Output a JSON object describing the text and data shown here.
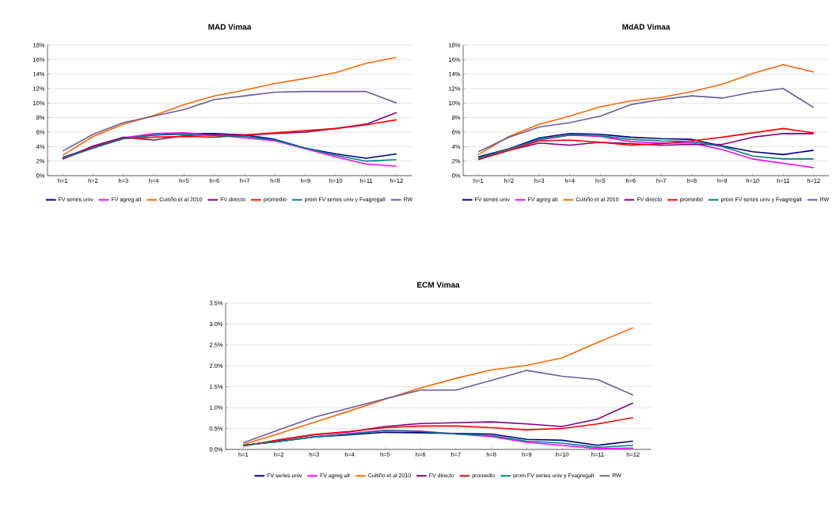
{
  "chart_data": [
    {
      "type": "line",
      "title": "MAD Vimaa",
      "categories": [
        "h=1",
        "h=2",
        "h=3",
        "h=4",
        "h=5",
        "h=6",
        "h=7",
        "h=8",
        "h=9",
        "h=10",
        "h=11",
        "h=12"
      ],
      "ylim": [
        0,
        18
      ],
      "yticks": [
        {
          "value": 0,
          "label": "0%"
        },
        {
          "value": 2,
          "label": "2%"
        },
        {
          "value": 4,
          "label": "4%"
        },
        {
          "value": 6,
          "label": "6%"
        },
        {
          "value": 8,
          "label": "8%"
        },
        {
          "value": 10,
          "label": "10%"
        },
        {
          "value": 12,
          "label": "12%"
        },
        {
          "value": 14,
          "label": "14%"
        },
        {
          "value": 16,
          "label": "16%"
        },
        {
          "value": 18,
          "label": "18%"
        }
      ],
      "grid": "y",
      "legend": "bottom",
      "marker": "none",
      "line_style": "solid",
      "series": [
        {
          "name": "FV series univ",
          "color": "#000080",
          "values": [
            2.5,
            3.9,
            5.2,
            5.6,
            5.8,
            5.8,
            5.6,
            5.0,
            3.8,
            3.0,
            2.4,
            3.0
          ]
        },
        {
          "name": "FV  agreg alt",
          "color": "#ff00ff",
          "values": [
            2.4,
            3.8,
            5.2,
            5.8,
            5.9,
            5.6,
            5.2,
            4.8,
            3.7,
            2.6,
            1.6,
            1.3
          ]
        },
        {
          "name": "Cuitiño et al 2010",
          "color": "#ff6600",
          "values": [
            2.8,
            5.4,
            7.1,
            8.3,
            9.8,
            11.0,
            11.8,
            12.7,
            13.4,
            14.2,
            15.5,
            16.3
          ]
        },
        {
          "name": "FV directo",
          "color": "#800080",
          "values": [
            2.3,
            4.1,
            5.3,
            4.9,
            5.5,
            5.7,
            5.6,
            5.8,
            6.0,
            6.5,
            7.1,
            8.7
          ]
        },
        {
          "name": "promedio",
          "color": "#ff0000",
          "values": [
            2.3,
            3.9,
            5.1,
            5.3,
            5.4,
            5.3,
            5.6,
            5.9,
            6.2,
            6.5,
            7.0,
            7.7
          ]
        },
        {
          "name": "prom FV series univ y Fvagregalt",
          "color": "#008080",
          "values": [
            2.4,
            3.8,
            5.1,
            5.6,
            5.7,
            5.5,
            5.4,
            4.9,
            3.8,
            2.8,
            2.0,
            2.2
          ]
        },
        {
          "name": "RW",
          "color": "#6f5a9a",
          "values": [
            3.4,
            5.7,
            7.3,
            8.2,
            9.1,
            10.5,
            11.0,
            11.5,
            11.6,
            11.6,
            11.6,
            10.0
          ]
        }
      ]
    },
    {
      "type": "line",
      "title": "MdAD Vimaa",
      "categories": [
        "h=1",
        "h=2",
        "h=3",
        "h=4",
        "h=5",
        "h=6",
        "h=7",
        "h=8",
        "h=9",
        "h=10",
        "h=11",
        "h=12"
      ],
      "ylim": [
        0,
        18
      ],
      "yticks": [
        {
          "value": 0,
          "label": "0%"
        },
        {
          "value": 2,
          "label": "2%"
        },
        {
          "value": 4,
          "label": "4%"
        },
        {
          "value": 6,
          "label": "6%"
        },
        {
          "value": 8,
          "label": "8%"
        },
        {
          "value": 10,
          "label": "10%"
        },
        {
          "value": 12,
          "label": "12%"
        },
        {
          "value": 14,
          "label": "14%"
        },
        {
          "value": 16,
          "label": "16%"
        },
        {
          "value": 18,
          "label": "18%"
        }
      ],
      "grid": "y",
      "legend": "bottom",
      "marker": "none",
      "line_style": "solid",
      "series": [
        {
          "name": "FV series univ",
          "color": "#000080",
          "values": [
            2.6,
            3.7,
            5.2,
            5.8,
            5.7,
            5.3,
            5.1,
            5.0,
            4.1,
            3.3,
            2.9,
            3.5
          ]
        },
        {
          "name": "FV  agreg alt",
          "color": "#ff00ff",
          "values": [
            2.3,
            3.5,
            4.9,
            5.6,
            5.4,
            4.7,
            4.5,
            4.5,
            3.6,
            2.3,
            1.7,
            1.1
          ]
        },
        {
          "name": "Cuitiño et al 2010",
          "color": "#ff6600",
          "values": [
            2.9,
            5.4,
            7.1,
            8.2,
            9.5,
            10.3,
            10.8,
            11.6,
            12.6,
            14.1,
            15.3,
            14.3
          ]
        },
        {
          "name": "FV directo",
          "color": "#800080",
          "values": [
            2.2,
            3.5,
            4.5,
            4.2,
            4.6,
            4.4,
            4.2,
            4.3,
            4.3,
            5.3,
            5.8,
            5.8
          ]
        },
        {
          "name": "promedio",
          "color": "#ff0000",
          "values": [
            2.3,
            3.5,
            4.8,
            4.9,
            4.6,
            4.2,
            4.4,
            4.8,
            5.3,
            5.9,
            6.5,
            5.9
          ]
        },
        {
          "name": "prom FV series univ y Fvagregalt",
          "color": "#008080",
          "values": [
            2.4,
            3.7,
            5.0,
            5.6,
            5.5,
            5.0,
            4.8,
            4.7,
            4.0,
            2.7,
            2.3,
            2.3
          ]
        },
        {
          "name": "RW",
          "color": "#6f5a9a",
          "values": [
            3.3,
            5.3,
            6.7,
            7.3,
            8.2,
            9.8,
            10.5,
            11.0,
            10.7,
            11.5,
            12.0,
            9.4
          ]
        }
      ]
    },
    {
      "type": "line",
      "title": "ECM Vimaa",
      "categories": [
        "h=1",
        "h=2",
        "h=3",
        "h=4",
        "h=5",
        "h=6",
        "h=7",
        "h=8",
        "h=9",
        "h=10",
        "h=11",
        "h=12"
      ],
      "ylim": [
        0,
        3.5
      ],
      "yticks": [
        {
          "value": 0,
          "label": "0.0%"
        },
        {
          "value": 0.5,
          "label": "0.5%"
        },
        {
          "value": 1,
          "label": "1.0%"
        },
        {
          "value": 1.5,
          "label": "1.5%"
        },
        {
          "value": 2,
          "label": "2.0%"
        },
        {
          "value": 2.5,
          "label": "2.5%"
        },
        {
          "value": 3,
          "label": "3.0%"
        },
        {
          "value": 3.5,
          "label": "3.5%"
        }
      ],
      "grid": "y",
      "legend": "bottom",
      "marker": "none",
      "line_style": "solid",
      "series": [
        {
          "name": "FV series univ",
          "color": "#000080",
          "values": [
            0.1,
            0.19,
            0.3,
            0.35,
            0.41,
            0.4,
            0.38,
            0.37,
            0.24,
            0.22,
            0.1,
            0.2
          ]
        },
        {
          "name": "FV  agreg alt",
          "color": "#ff00ff",
          "values": [
            null,
            null,
            0.3,
            0.38,
            0.46,
            0.44,
            0.37,
            0.31,
            0.17,
            0.1,
            0.02,
            0.03
          ]
        },
        {
          "name": "Cuitiño et al 2010",
          "color": "#ff6600",
          "values": [
            0.12,
            0.38,
            0.65,
            0.92,
            1.2,
            1.47,
            1.7,
            1.9,
            2.01,
            2.19,
            2.56,
            2.91
          ]
        },
        {
          "name": "FV directo",
          "color": "#800080",
          "values": [
            0.09,
            0.22,
            0.35,
            0.42,
            0.55,
            0.62,
            0.64,
            0.66,
            0.61,
            0.55,
            0.73,
            1.11
          ]
        },
        {
          "name": "promedio",
          "color": "#ff0000",
          "values": [
            0.08,
            0.23,
            0.36,
            0.43,
            0.52,
            0.56,
            0.56,
            0.52,
            0.47,
            0.5,
            0.61,
            0.76
          ]
        },
        {
          "name": "prom FV series univ y Fvagregalt",
          "color": "#008080",
          "values": [
            0.1,
            0.19,
            0.3,
            0.37,
            0.45,
            0.43,
            0.37,
            0.33,
            0.2,
            0.15,
            0.05,
            0.1
          ]
        },
        {
          "name": "RW",
          "color": "#6f5a9a",
          "values": [
            0.16,
            0.47,
            0.77,
            0.99,
            1.21,
            1.42,
            1.42,
            1.65,
            1.89,
            1.75,
            1.67,
            1.3
          ]
        }
      ]
    }
  ]
}
